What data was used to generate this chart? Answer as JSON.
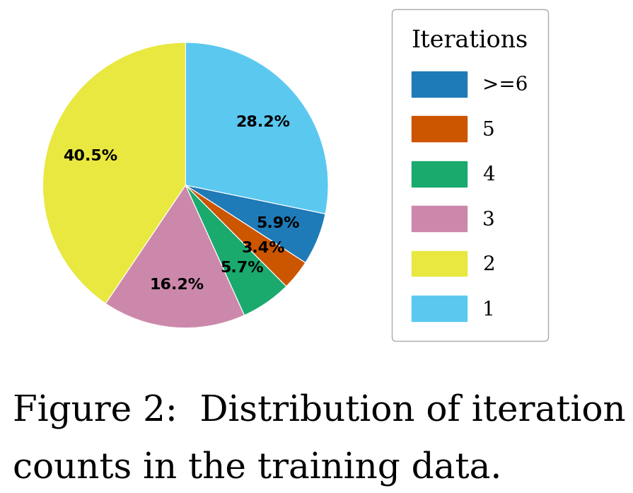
{
  "labels": [
    ">=6",
    "5",
    "4",
    "3",
    "2",
    "1"
  ],
  "values": [
    5.9,
    3.4,
    5.7,
    16.2,
    40.5,
    28.2
  ],
  "colors": [
    "#1f7ab8",
    "#cc5500",
    "#1aaa6e",
    "#cc88aa",
    "#e8e840",
    "#5bc8f0"
  ],
  "pie_order_values": [
    28.2,
    5.9,
    3.4,
    5.7,
    16.2,
    40.5
  ],
  "pie_order_colors": [
    "#5bc8f0",
    "#1f7ab8",
    "#cc5500",
    "#1aaa6e",
    "#cc88aa",
    "#e8e840"
  ],
  "legend_title": "Iterations",
  "caption_line1": "Figure 2:  Distribution of iteration",
  "caption_line2": "counts in the training data.",
  "background_color": "#ffffff",
  "label_fontsize": 16,
  "legend_fontsize": 20,
  "legend_title_fontsize": 24,
  "caption_fontsize": 36,
  "startangle": 90,
  "pct_distance": 0.7
}
